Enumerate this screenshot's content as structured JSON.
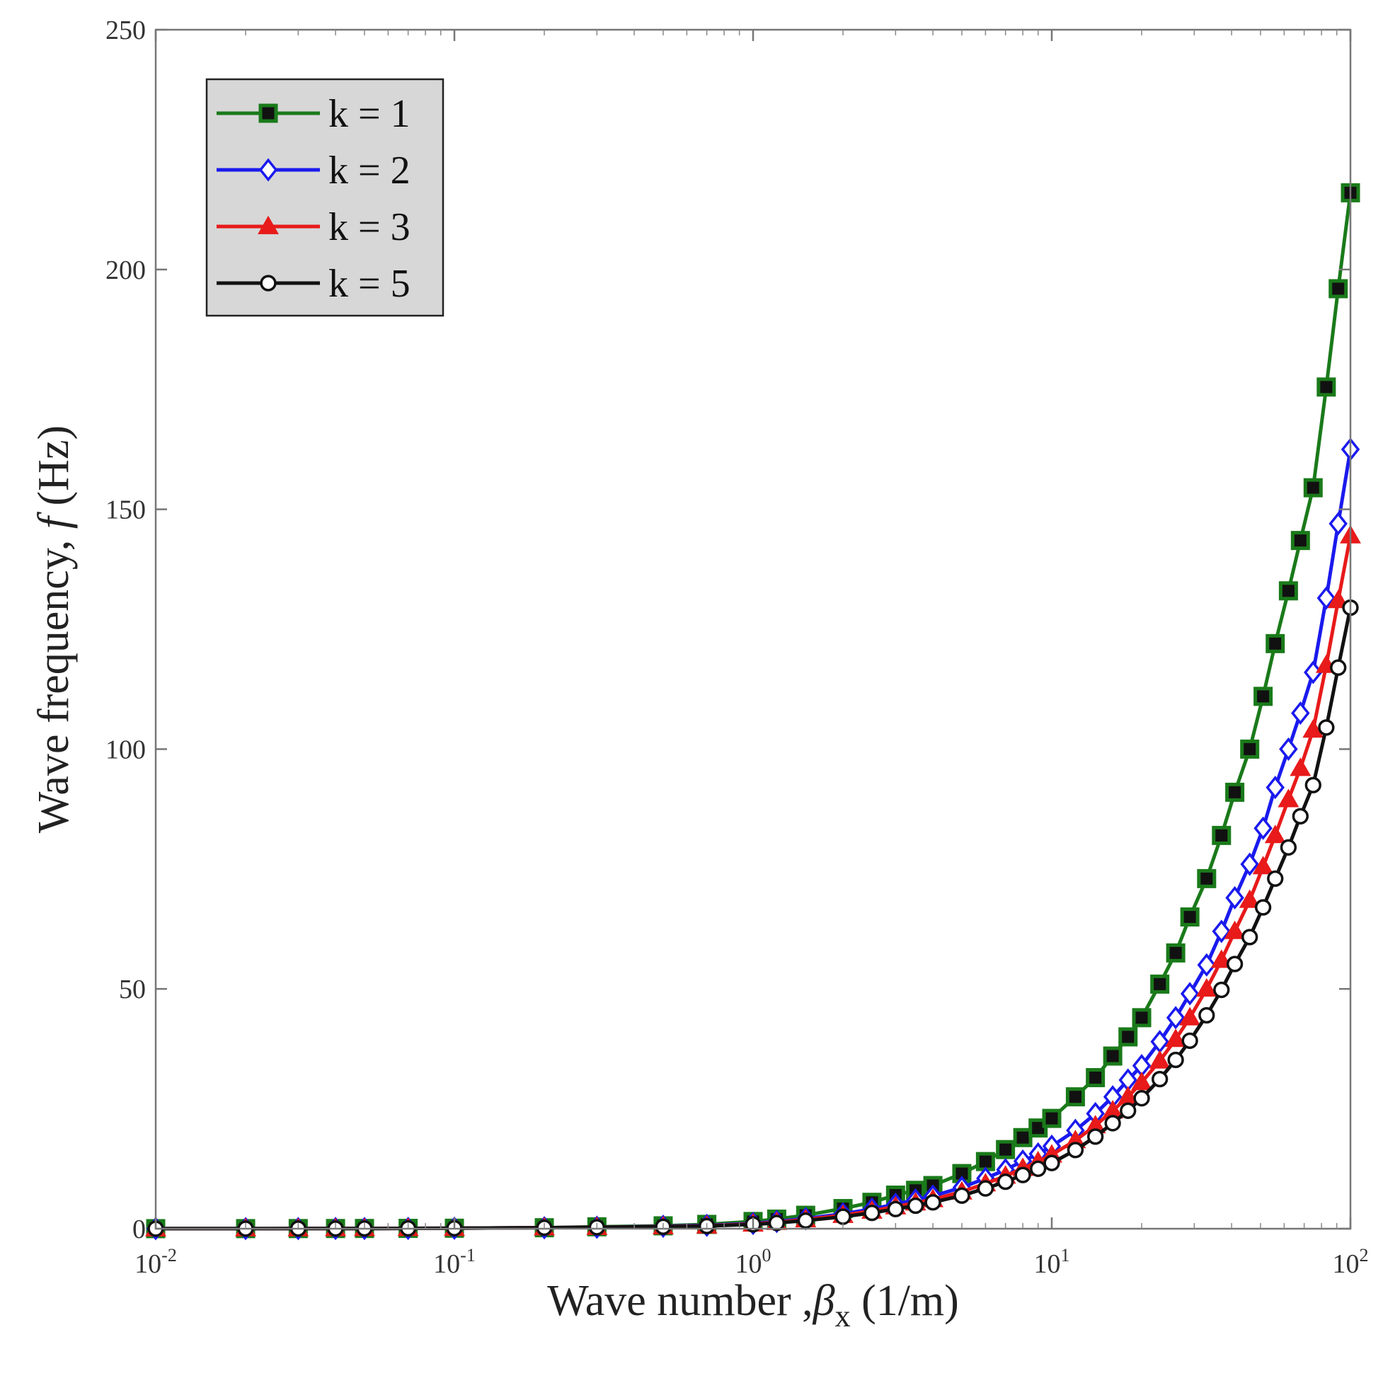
{
  "chart_data": {
    "type": "line",
    "x_scale": "log",
    "xlim": [
      0.01,
      100
    ],
    "ylim": [
      0,
      250
    ],
    "x_ticks": [
      {
        "value": 0.01,
        "base": "10",
        "exp": "-2"
      },
      {
        "value": 0.1,
        "base": "10",
        "exp": "-1"
      },
      {
        "value": 1,
        "base": "10",
        "exp": "0"
      },
      {
        "value": 10,
        "base": "10",
        "exp": "1"
      },
      {
        "value": 100,
        "base": "10",
        "exp": "2"
      }
    ],
    "y_ticks": [
      0,
      50,
      100,
      150,
      200,
      250
    ],
    "xlabel": {
      "main": "Wave number ,",
      "symbol": "β",
      "sub": "x",
      "unit": " (1/m)"
    },
    "ylabel": {
      "main": "Wave frequency, ",
      "symbol": "f",
      "unit": " (Hz)"
    },
    "legend_position": "top-left",
    "x": [
      0.01,
      0.02,
      0.03,
      0.04,
      0.05,
      0.07,
      0.1,
      0.2,
      0.3,
      0.5,
      0.7,
      1,
      1.2,
      1.5,
      2,
      2.5,
      3,
      3.5,
      4,
      5,
      6,
      7,
      8,
      9,
      10,
      12,
      14,
      16,
      18,
      20,
      23,
      26,
      29,
      33,
      37,
      41,
      46,
      51,
      56,
      62,
      68,
      75,
      83,
      91,
      100
    ],
    "series": [
      {
        "name": "k = 1",
        "color": "#1a7a1a",
        "marker": "square",
        "values": [
          0.01,
          0.02,
          0.03,
          0.04,
          0.05,
          0.07,
          0.1,
          0.2,
          0.4,
          0.6,
          0.9,
          1.5,
          2.0,
          2.8,
          4.2,
          5.5,
          7.0,
          8.0,
          9.0,
          11.5,
          14,
          16.5,
          19,
          21,
          23,
          27.5,
          31.5,
          36,
          40,
          44,
          51,
          57.5,
          65,
          73,
          82,
          91,
          100,
          111,
          122,
          133,
          143.5,
          154.5,
          175.5,
          196,
          216
        ]
      },
      {
        "name": "k = 2",
        "color": "#1a1aee",
        "marker": "diamond",
        "values": [
          0.01,
          0.02,
          0.03,
          0.04,
          0.05,
          0.07,
          0.1,
          0.2,
          0.3,
          0.5,
          0.7,
          1.1,
          1.5,
          2.1,
          3.1,
          4.1,
          5.1,
          6.0,
          6.8,
          8.6,
          10.5,
          12.3,
          14.1,
          15.6,
          17.2,
          20.5,
          24,
          27.5,
          31,
          34,
          39,
          44,
          49,
          55,
          62,
          69,
          76,
          83.5,
          92,
          100,
          107.5,
          116,
          131.5,
          147,
          162.5
        ]
      },
      {
        "name": "k = 3",
        "color": "#e81a1a",
        "marker": "triangle",
        "values": [
          0.01,
          0.02,
          0.03,
          0.04,
          0.05,
          0.07,
          0.1,
          0.2,
          0.3,
          0.45,
          0.6,
          1.0,
          1.35,
          1.9,
          2.8,
          3.7,
          4.6,
          5.4,
          6.1,
          7.7,
          9.4,
          11.0,
          12.6,
          14.0,
          15.4,
          18.4,
          21.5,
          24.6,
          27.5,
          30.5,
          35,
          39.5,
          44,
          50,
          56,
          62,
          68.5,
          75.5,
          82,
          89.5,
          96,
          104,
          117.5,
          131,
          144.5
        ]
      },
      {
        "name": "k = 5",
        "color": "#111111",
        "marker": "circle",
        "values": [
          0.01,
          0.02,
          0.03,
          0.04,
          0.05,
          0.07,
          0.1,
          0.2,
          0.3,
          0.4,
          0.55,
          0.9,
          1.2,
          1.7,
          2.5,
          3.3,
          4.1,
          4.8,
          5.5,
          6.9,
          8.4,
          9.8,
          11.2,
          12.5,
          13.7,
          16.4,
          19.2,
          22,
          24.6,
          27.2,
          31.2,
          35.2,
          39.2,
          44.5,
          49.8,
          55.2,
          60.8,
          67,
          73,
          79.5,
          86,
          92.5,
          104.5,
          117,
          129.5
        ]
      }
    ]
  }
}
